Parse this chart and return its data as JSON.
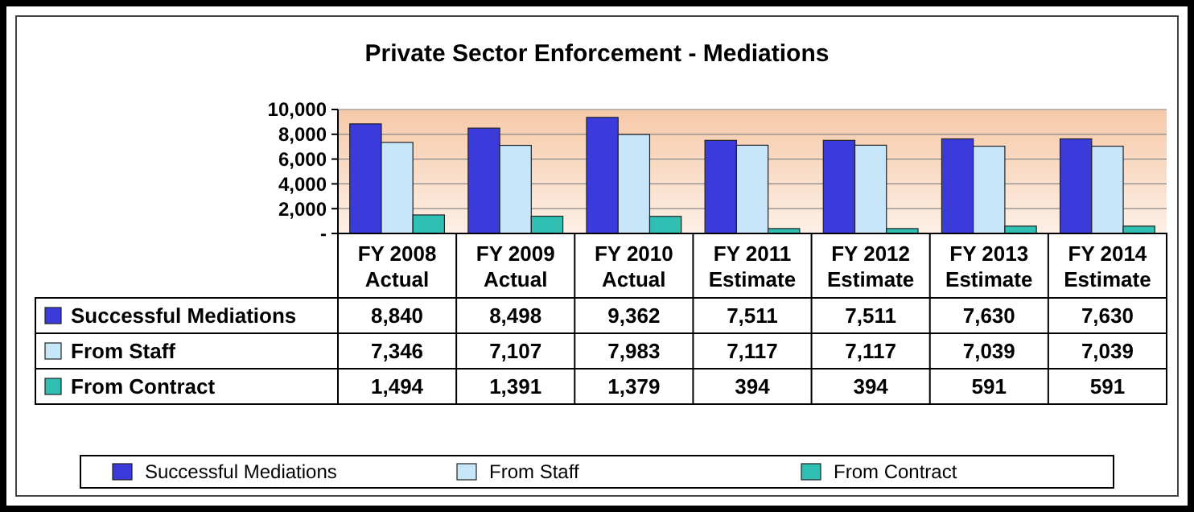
{
  "chart_data": {
    "type": "bar",
    "title": "Private Sector Enforcement - Mediations",
    "categories": [
      "FY 2008 Actual",
      "FY 2009 Actual",
      "FY 2010 Actual",
      "FY 2011 Estimate",
      "FY 2012 Estimate",
      "FY 2013 Estimate",
      "FY 2014 Estimate"
    ],
    "series": [
      {
        "name": "Successful Mediations",
        "color": "#3b3bdc",
        "values": [
          8840,
          8498,
          9362,
          7511,
          7511,
          7630,
          7630
        ],
        "value_labels": [
          "8,840",
          "8,498",
          "9,362",
          "7,511",
          "7,511",
          "7,630",
          "7,630"
        ]
      },
      {
        "name": "From Staff",
        "color": "#c8e6fa",
        "values": [
          7346,
          7107,
          7983,
          7117,
          7117,
          7039,
          7039
        ],
        "value_labels": [
          "7,346",
          "7,107",
          "7,983",
          "7,117",
          "7,117",
          "7,039",
          "7,039"
        ]
      },
      {
        "name": "From Contract",
        "color": "#2fbfb3",
        "values": [
          1494,
          1391,
          1379,
          394,
          394,
          591,
          591
        ],
        "value_labels": [
          "1,494",
          "1,391",
          "1,379",
          "394",
          "394",
          "591",
          "591"
        ]
      }
    ],
    "ylim": [
      0,
      10000
    ],
    "yticks": [
      {
        "value": 0,
        "label": "-"
      },
      {
        "value": 2000,
        "label": "2,000"
      },
      {
        "value": 4000,
        "label": "4,000"
      },
      {
        "value": 6000,
        "label": "6,000"
      },
      {
        "value": 8000,
        "label": "8,000"
      },
      {
        "value": 10000,
        "label": "10,000"
      }
    ],
    "grid": "y",
    "legend": "bottom"
  }
}
